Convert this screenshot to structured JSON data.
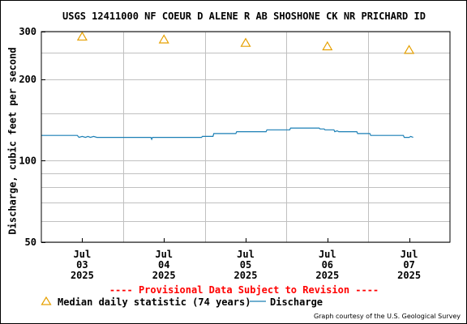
{
  "chart_data": {
    "type": "line",
    "title": "USGS 12411000 NF COEUR D ALENE R AB SHOSHONE CK NR PRICHARD ID",
    "ylabel": "Discharge, cubic feet per second",
    "xlabel": "",
    "y_scale": "log",
    "ylim": [
      50,
      300
    ],
    "y_ticks": [
      {
        "value": 300,
        "label": "300"
      },
      {
        "value": 200,
        "label": "200"
      },
      {
        "value": 100,
        "label": "100"
      },
      {
        "value": 50,
        "label": "50"
      }
    ],
    "y_minor_gridlines": [
      60,
      70,
      80,
      90,
      150,
      250
    ],
    "xlim_days": [
      -0.5,
      4.5
    ],
    "x_ticks": [
      {
        "day": 0,
        "month": "Jul",
        "date": "03",
        "year": "2025"
      },
      {
        "day": 1,
        "month": "Jul",
        "date": "04",
        "year": "2025"
      },
      {
        "day": 2,
        "month": "Jul",
        "date": "05",
        "year": "2025"
      },
      {
        "day": 3,
        "month": "Jul",
        "date": "06",
        "year": "2025"
      },
      {
        "day": 4,
        "month": "Jul",
        "date": "07",
        "year": "2025"
      }
    ],
    "grid": true,
    "series": [
      {
        "name": "Median daily statistic (74 years)",
        "kind": "marker",
        "marker": "triangle",
        "color": "#e6a000",
        "points": [
          {
            "day": 0,
            "value": 288
          },
          {
            "day": 1,
            "value": 281
          },
          {
            "day": 2,
            "value": 273
          },
          {
            "day": 3,
            "value": 265
          },
          {
            "day": 4,
            "value": 257
          }
        ]
      },
      {
        "name": "Discharge",
        "kind": "line",
        "color": "#1a7fb5",
        "points": [
          {
            "day": -0.5,
            "value": 124
          },
          {
            "day": -0.06,
            "value": 124
          },
          {
            "day": -0.04,
            "value": 122
          },
          {
            "day": 0.0,
            "value": 123
          },
          {
            "day": 0.04,
            "value": 122
          },
          {
            "day": 0.07,
            "value": 123
          },
          {
            "day": 0.1,
            "value": 122
          },
          {
            "day": 0.14,
            "value": 123
          },
          {
            "day": 0.18,
            "value": 122
          },
          {
            "day": 0.84,
            "value": 122
          },
          {
            "day": 0.85,
            "value": 120
          },
          {
            "day": 0.86,
            "value": 122
          },
          {
            "day": 1.46,
            "value": 122
          },
          {
            "day": 1.47,
            "value": 123
          },
          {
            "day": 1.6,
            "value": 123
          },
          {
            "day": 1.61,
            "value": 126
          },
          {
            "day": 1.88,
            "value": 126
          },
          {
            "day": 1.89,
            "value": 128
          },
          {
            "day": 2.25,
            "value": 128
          },
          {
            "day": 2.26,
            "value": 130
          },
          {
            "day": 2.54,
            "value": 130
          },
          {
            "day": 2.55,
            "value": 132
          },
          {
            "day": 2.9,
            "value": 132
          },
          {
            "day": 2.91,
            "value": 131
          },
          {
            "day": 2.96,
            "value": 131
          },
          {
            "day": 2.97,
            "value": 130
          },
          {
            "day": 3.08,
            "value": 130
          },
          {
            "day": 3.09,
            "value": 128
          },
          {
            "day": 3.12,
            "value": 129
          },
          {
            "day": 3.14,
            "value": 128
          },
          {
            "day": 3.36,
            "value": 128
          },
          {
            "day": 3.37,
            "value": 126
          },
          {
            "day": 3.52,
            "value": 126
          },
          {
            "day": 3.53,
            "value": 124
          },
          {
            "day": 3.93,
            "value": 124
          },
          {
            "day": 3.94,
            "value": 122
          },
          {
            "day": 4.0,
            "value": 122
          },
          {
            "day": 4.02,
            "value": 123
          },
          {
            "day": 4.05,
            "value": 122
          }
        ]
      }
    ]
  },
  "provisional_notice": "---- Provisional Data Subject to Revision ----",
  "legend": {
    "median_label": "Median daily statistic (74 years)",
    "discharge_label": "Discharge"
  },
  "courtesy": "Graph courtesy of the U.S. Geological Survey",
  "colors": {
    "grid": "#c0c0c0",
    "axis": "#000000",
    "median_marker": "#e6a000",
    "discharge_line": "#1a7fb5",
    "provisional": "#ff0000"
  }
}
